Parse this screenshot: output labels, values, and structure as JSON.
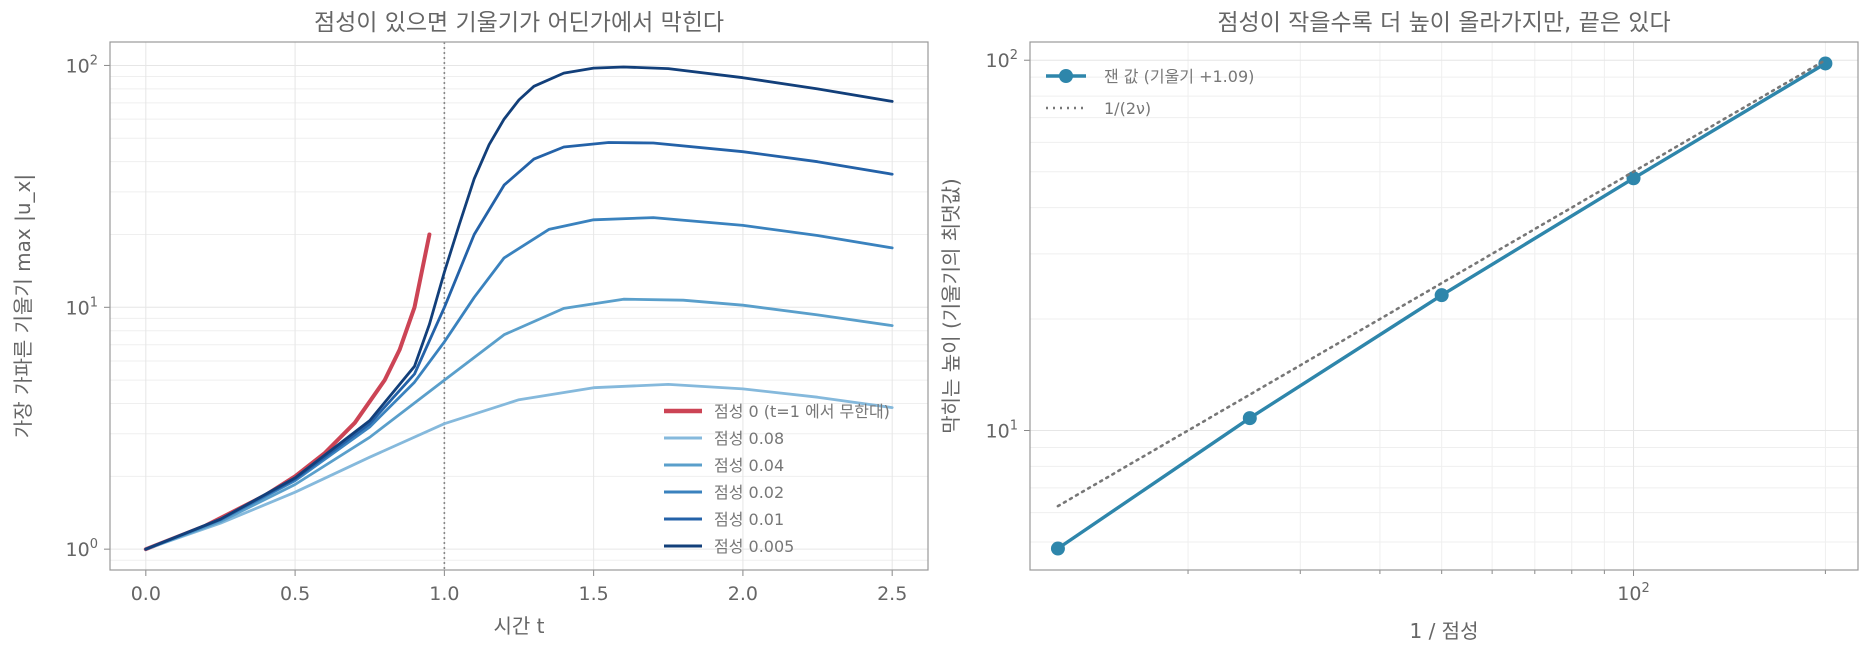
{
  "chart_data": [
    {
      "type": "line",
      "title": "점성이 있으면 기울기가 어딘가에서 막힌다",
      "xlabel": "시간 t",
      "ylabel": "가장 가파른 기울기 max |u_x|",
      "xlim": [
        -0.12,
        2.62
      ],
      "ylim": [
        0.82,
        125
      ],
      "yscale": "log",
      "x_ticks": [
        "0.0",
        "0.5",
        "1.0",
        "1.5",
        "2.0",
        "2.5"
      ],
      "y_ticks": [
        "10^0",
        "10^1",
        "10^2"
      ],
      "vline_x": 1.0,
      "grid": true,
      "legend_position": "lower-right",
      "series": [
        {
          "name": "점성 0 (t=1 에서 무한대)",
          "color": "#cc4455",
          "x": [
            0,
            0.2,
            0.4,
            0.5,
            0.6,
            0.7,
            0.8,
            0.85,
            0.9,
            0.95
          ],
          "y": [
            1.0,
            1.25,
            1.67,
            2.0,
            2.5,
            3.33,
            5.0,
            6.67,
            10.0,
            20.0
          ]
        },
        {
          "name": "점성 0.08",
          "color": "#85b9dc",
          "x": [
            0,
            0.25,
            0.5,
            0.75,
            1.0,
            1.25,
            1.5,
            1.75,
            2.0,
            2.25,
            2.5
          ],
          "y": [
            1.0,
            1.28,
            1.72,
            2.4,
            3.3,
            4.15,
            4.65,
            4.8,
            4.6,
            4.25,
            3.85
          ]
        },
        {
          "name": "점성 0.04",
          "color": "#5a9fcb",
          "x": [
            0,
            0.25,
            0.5,
            0.75,
            1.0,
            1.2,
            1.4,
            1.6,
            1.8,
            2.0,
            2.25,
            2.5
          ],
          "y": [
            1.0,
            1.3,
            1.85,
            2.9,
            5.0,
            7.7,
            9.9,
            10.8,
            10.7,
            10.2,
            9.3,
            8.4
          ]
        },
        {
          "name": "점성 0.02",
          "color": "#3a82be",
          "x": [
            0,
            0.25,
            0.5,
            0.75,
            0.9,
            1.0,
            1.1,
            1.2,
            1.35,
            1.5,
            1.7,
            2.0,
            2.25,
            2.5
          ],
          "y": [
            1.0,
            1.32,
            1.92,
            3.2,
            4.9,
            7.2,
            11.0,
            16.0,
            21.0,
            23.0,
            23.5,
            21.8,
            19.8,
            17.6
          ]
        },
        {
          "name": "점성 0.01",
          "color": "#2462a8",
          "x": [
            0,
            0.25,
            0.5,
            0.75,
            0.9,
            1.0,
            1.1,
            1.2,
            1.3,
            1.4,
            1.55,
            1.7,
            2.0,
            2.25,
            2.5
          ],
          "y": [
            1.0,
            1.33,
            1.95,
            3.3,
            5.3,
            10.0,
            20.0,
            32.0,
            41.0,
            46.0,
            48.0,
            47.8,
            44.0,
            40.0,
            35.5
          ]
        },
        {
          "name": "점성 0.005",
          "color": "#123f7a",
          "x": [
            0,
            0.25,
            0.5,
            0.75,
            0.9,
            0.95,
            1.0,
            1.05,
            1.1,
            1.15,
            1.2,
            1.25,
            1.3,
            1.4,
            1.5,
            1.6,
            1.75,
            2.0,
            2.25,
            2.5
          ],
          "y": [
            1.0,
            1.33,
            1.97,
            3.4,
            5.7,
            8.5,
            14.0,
            22.0,
            34.0,
            47.0,
            60.0,
            72.0,
            82.0,
            93.0,
            97.5,
            98.5,
            97.0,
            89.0,
            80.0,
            71.0
          ]
        }
      ]
    },
    {
      "type": "line",
      "title": "점성이 작을수록 더 높이 올라가지만, 끝은 있다",
      "xlabel": "1 / 점성",
      "ylabel": "막히는 높이 (기울기의 최댓값)",
      "xscale": "log",
      "yscale": "log",
      "xlim": [
        11.3,
        225
      ],
      "ylim": [
        4.2,
        112
      ],
      "x_ticks": [
        "10^2"
      ],
      "y_ticks": [
        "10^1",
        "10^2"
      ],
      "grid": true,
      "legend_position": "top-left",
      "series": [
        {
          "name": "잰 값 (기울기 +1.09)",
          "color": "#2e86ab",
          "markers": true,
          "x": [
            12.5,
            25,
            50,
            100,
            200
          ],
          "y": [
            4.8,
            10.8,
            23.2,
            48.0,
            98.0
          ]
        },
        {
          "name": "1/(2ν)",
          "color": "#777777",
          "dashed": true,
          "x": [
            12.5,
            200
          ],
          "y": [
            6.25,
            100
          ]
        }
      ]
    }
  ]
}
